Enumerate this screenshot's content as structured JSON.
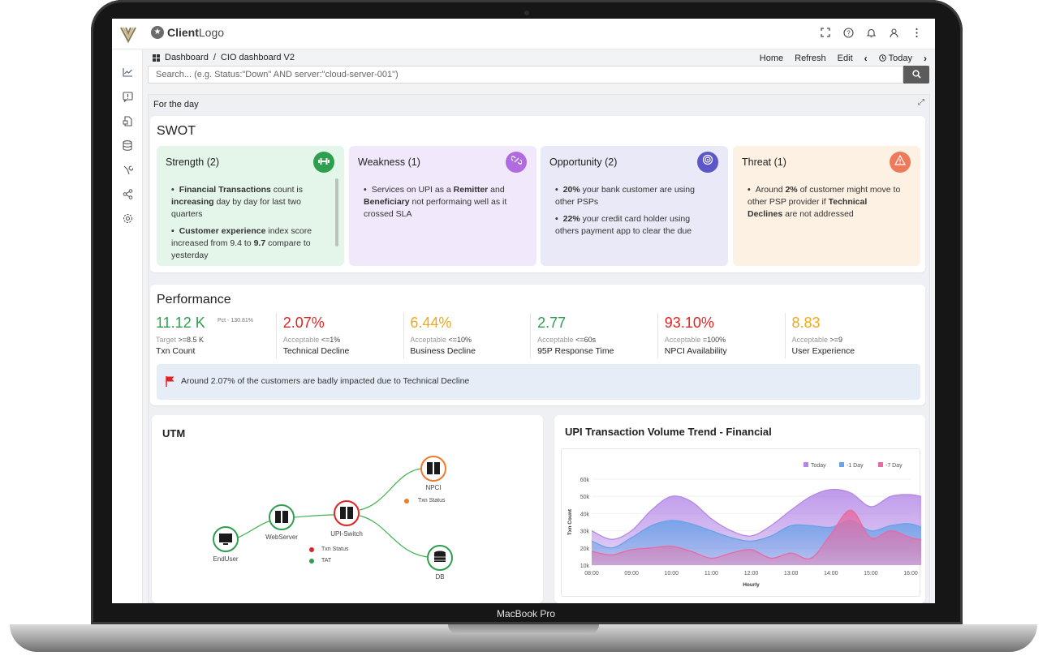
{
  "device": {
    "brand": "MacBook Pro"
  },
  "topbar": {
    "client_logo_text_a": "Client",
    "client_logo_text_b": "Logo",
    "icons": [
      "fullscreen-icon",
      "help-icon",
      "bell-icon",
      "user-icon",
      "more-vertical-icon"
    ]
  },
  "sidebar": {
    "items": [
      "chart-line-icon",
      "alert-icon",
      "report-icon",
      "database-icon",
      "tools-icon",
      "share-icon",
      "settings-icon"
    ]
  },
  "breadcrumb": {
    "root": "Dashboard",
    "sep": "/",
    "current": "CIO dashboard V2"
  },
  "actions": {
    "home": "Home",
    "refresh": "Refresh",
    "edit": "Edit",
    "prev": "‹",
    "today": "Today",
    "next": "›"
  },
  "search": {
    "placeholder": "Search... (e.g. Status:\"Down\" AND server:\"cloud-server-001\")"
  },
  "panel": {
    "title": "For the day"
  },
  "swot": {
    "title": "SWOT",
    "strength": {
      "title": "Strength (2)",
      "color": "#2e9e4f",
      "bg": "#e4f5e9",
      "i1a": "Financial Transactions",
      "i1b": " count is ",
      "i1c": "increasing",
      "i1d": " day by day for last two quarters",
      "i2a": "Customer experience",
      "i2b": " index score increased from 9.4 to ",
      "i2c": "9.7",
      "i2d": " compare to yesterday"
    },
    "weakness": {
      "title": "Weakness (1)",
      "color": "#b06be0",
      "bg": "#f1e8fb",
      "i1a": "Services on UPI as a ",
      "i1b": "Remitter",
      "i1c": " and ",
      "i1d": "Beneficiary",
      "i1e": " not performaing well as it crossed SLA"
    },
    "opportunity": {
      "title": "Opportunity (2)",
      "color": "#5b57c9",
      "bg": "#e9e9f7",
      "i1a": "20%",
      "i1b": " your bank customer are using other PSPs",
      "i2a": "22%",
      "i2b": " your credit card holder using others payment app to clear the due"
    },
    "threat": {
      "title": "Threat (1)",
      "color": "#ef7a5b",
      "bg": "#fdf1e3",
      "i1a": "Around ",
      "i1b": "2%",
      "i1c": " of customer might move to other PSP provider if ",
      "i1d": "Technical Declines",
      "i1e": " are not addressed"
    }
  },
  "performance": {
    "title": "Performance",
    "metrics": [
      {
        "value": "11.12 K",
        "color": "#2e9e4f",
        "pct": "Pct - 130.81%",
        "acc_label": "Target",
        "acc_value": ">=8.5 K",
        "name": "Txn Count"
      },
      {
        "value": "2.07%",
        "color": "#e02424",
        "pct": "",
        "acc_label": "Acceptable",
        "acc_value": "<=1%",
        "name": "Technical Decline"
      },
      {
        "value": "6.44%",
        "color": "#f0a81c",
        "pct": "",
        "acc_label": "Acceptable",
        "acc_value": "<=10%",
        "name": "Business Decline"
      },
      {
        "value": "2.77",
        "color": "#2e9e4f",
        "pct": "",
        "acc_label": "Acceptable",
        "acc_value": "<=60s",
        "name": "95P Response Time"
      },
      {
        "value": "93.10%",
        "color": "#e02424",
        "pct": "",
        "acc_label": "Acceptable",
        "acc_value": "=100%",
        "name": "NPCI Availability"
      },
      {
        "value": "8.83",
        "color": "#f0a81c",
        "pct": "",
        "acc_label": "Acceptable",
        "acc_value": ">=9",
        "name": "User Experience"
      }
    ],
    "alert": "Around 2.07% of the customers are badly impacted due to Technical Decline"
  },
  "utm": {
    "title": "UTM",
    "nodes": {
      "enduser": "EndUser",
      "webserver": "WebServer",
      "upiswitch": "UPI-Switch",
      "npci": "NPCI",
      "db": "DB"
    },
    "legend": {
      "txn_status": "Txn Status",
      "tat": "TAT"
    }
  },
  "trend": {
    "title": "UPI Transaction Volume Trend - Financial"
  },
  "chart_data": {
    "type": "area",
    "title": "UPI Transaction Volume Trend - Financial",
    "xlabel": "Hourly",
    "ylabel": "Txn Count",
    "x_ticks": [
      "08:00",
      "09:00",
      "10:00",
      "11:00",
      "12:00",
      "13:00",
      "14:00",
      "15:00",
      "16:00"
    ],
    "y_ticks": [
      "10k",
      "20k",
      "30k",
      "40k",
      "50k",
      "60k"
    ],
    "ylim": [
      10000,
      60000
    ],
    "legend_position": "top-right",
    "x": [
      0,
      0.5,
      1,
      1.5,
      2,
      2.5,
      3,
      3.5,
      4,
      4.5,
      5,
      5.5,
      6,
      6.5,
      7,
      7.5,
      8,
      8.5,
      9
    ],
    "series": [
      {
        "name": "Today",
        "color": "#b487e6",
        "values": [
          30000,
          25000,
          30000,
          42000,
          50000,
          47000,
          37000,
          30000,
          27000,
          33000,
          42000,
          50000,
          54000,
          52000,
          44000,
          50000,
          51000,
          49000,
          50000
        ]
      },
      {
        "name": "-1 Day",
        "color": "#6aa2e8",
        "values": [
          24000,
          20000,
          26000,
          33000,
          36000,
          34000,
          30000,
          26000,
          24000,
          27000,
          33000,
          33000,
          32000,
          36000,
          30000,
          33000,
          34000,
          30000,
          27000
        ]
      },
      {
        "name": "-7 Day",
        "color": "#e86aa2",
        "values": [
          18000,
          16000,
          19000,
          20000,
          21000,
          18000,
          14000,
          17000,
          19000,
          14000,
          17000,
          14000,
          28000,
          42000,
          26000,
          30000,
          26000,
          24000,
          23000
        ]
      }
    ]
  }
}
